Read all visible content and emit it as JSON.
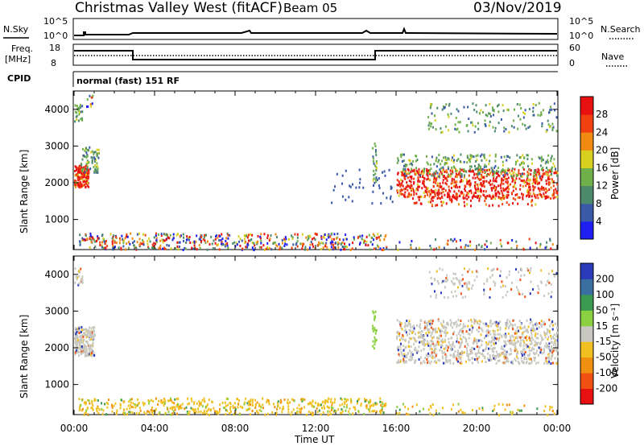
{
  "header": {
    "title": "Christmas Valley West (fitACF)",
    "beam": "Beam 05",
    "date": "03/Nov/2019"
  },
  "status": {
    "nsky_label": "N.Sky",
    "nsky_top": "10^5",
    "nsky_bottom": "10^0",
    "nsearch_label": "N.Search",
    "nsearch_top": "10^5",
    "nsearch_bottom": "10^0",
    "freq_label_1": "Freq.",
    "freq_label_2": "[MHz]",
    "freq_top": "18",
    "freq_bottom": "8",
    "nave_label": "Nave",
    "nave_top": "60",
    "nave_bottom": "0",
    "cpid_label": "CPID",
    "cpid_text": "normal (fast) 151 RF"
  },
  "chart_data": [
    {
      "type": "heatmap",
      "name": "power",
      "ylabel": "Slant Range [km]",
      "xlabel": "",
      "yticks": [
        1000,
        2000,
        3000,
        4000
      ],
      "ylim": [
        180,
        4500
      ],
      "xlim": [
        0,
        24
      ],
      "colorbar_label": "Power [dB]",
      "colorbar_ticks": [
        "4",
        "8",
        "12",
        "16",
        "20",
        "24",
        "28"
      ],
      "colorbar_colors": [
        "#1e1ef0",
        "#3a5aa8",
        "#4b8a6a",
        "#6fb04a",
        "#d8d020",
        "#f08a10",
        "#f04010",
        "#e81010"
      ]
    },
    {
      "type": "heatmap",
      "name": "velocity",
      "ylabel": "Slant Range [km]",
      "xlabel": "Time UT",
      "yticks": [
        1000,
        2000,
        3000,
        4000
      ],
      "ylim": [
        180,
        4500
      ],
      "xlim": [
        0,
        24
      ],
      "xticks": [
        "00:00",
        "04:00",
        "08:00",
        "12:00",
        "16:00",
        "20:00",
        "00:00"
      ],
      "colorbar_label": "Velocity [m s⁻¹]",
      "colorbar_ticks": [
        "200",
        "100",
        "50",
        "15",
        "-15",
        "-50",
        "-100",
        "-200"
      ],
      "colorbar_colors": [
        "#2a3ab8",
        "#3a70a0",
        "#3a9a50",
        "#8ad040",
        "#c8c8c0",
        "#f0c020",
        "#f09010",
        "#f05010",
        "#e81010"
      ]
    }
  ]
}
